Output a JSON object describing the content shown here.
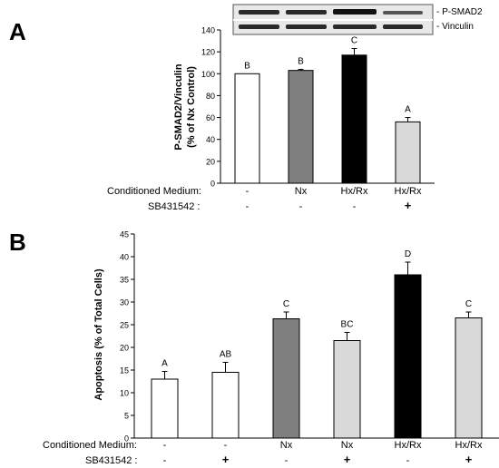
{
  "panels": [
    {
      "panel_label": "A",
      "ylabel_lines": [
        "P-SMAD2/Vinculin",
        "(% of Nx Control)"
      ],
      "blot_labels": [
        "- P-SMAD2",
        "- Vinculin"
      ],
      "row_labels": [
        "Conditioned Medium:",
        "SB431542 :"
      ],
      "colors": {
        "open": "#ffffff",
        "gray": "#7f7f7f",
        "black": "#000000",
        "light": "#d9d9d9"
      }
    },
    {
      "panel_label": "B",
      "ylabel_lines": [
        "Apoptosis (% of Total Cells)"
      ],
      "row_labels": [
        "Conditioned Medium:",
        "SB431542 :"
      ],
      "colors": {
        "open": "#ffffff",
        "gray": "#7f7f7f",
        "black": "#000000",
        "light": "#d9d9d9"
      }
    }
  ],
  "chart_data": [
    {
      "type": "bar",
      "ylabel": "P-SMAD2/Vinculin (% of Nx Control)",
      "ylim": [
        0,
        140
      ],
      "yticks": [
        0,
        20,
        40,
        60,
        80,
        100,
        120,
        140
      ],
      "categories": [
        "-",
        "Nx",
        "Hx/Rx",
        "Hx/Rx"
      ],
      "sb431542": [
        "-",
        "-",
        "-",
        "+"
      ],
      "values": [
        100,
        103,
        117,
        56
      ],
      "errors": [
        0,
        1,
        6,
        4
      ],
      "letters": [
        "B",
        "B",
        "C",
        "A"
      ],
      "bar_colors": [
        "open",
        "gray",
        "black",
        "light"
      ],
      "grid": false
    },
    {
      "type": "bar",
      "ylabel": "Apoptosis (% of Total Cells)",
      "ylim": [
        0,
        45
      ],
      "yticks": [
        0,
        5,
        10,
        15,
        20,
        25,
        30,
        35,
        40,
        45
      ],
      "categories": [
        "-",
        "-",
        "Nx",
        "Nx",
        "Hx/Rx",
        "Hx/Rx"
      ],
      "sb431542": [
        "-",
        "+",
        "-",
        "+",
        "-",
        "+"
      ],
      "values": [
        13,
        14.5,
        26.3,
        21.5,
        36,
        26.5
      ],
      "errors": [
        1.7,
        2.2,
        1.5,
        1.8,
        2.8,
        1.3
      ],
      "letters": [
        "A",
        "AB",
        "C",
        "BC",
        "D",
        "C"
      ],
      "bar_colors": [
        "open",
        "open",
        "gray",
        "light",
        "black",
        "light"
      ],
      "grid": false
    }
  ]
}
